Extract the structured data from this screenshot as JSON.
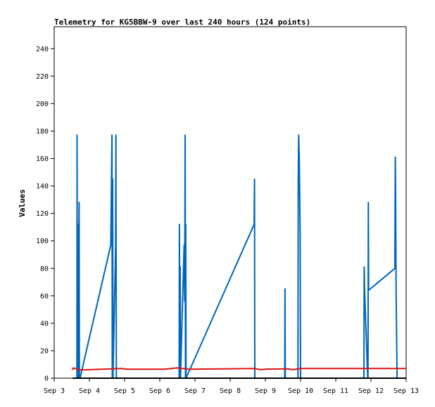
{
  "chart_data": {
    "type": "line",
    "title": "Telemetry for KG5BBW-9 over last 240 hours (124 points)",
    "xlabel": "",
    "ylabel": "Values",
    "xlim": [
      0,
      240
    ],
    "ylim": [
      0,
      256
    ],
    "grid": false,
    "x_ticks": [
      {
        "x": 0,
        "label": "Sep 3"
      },
      {
        "x": 24,
        "label": "Sep 4"
      },
      {
        "x": 48,
        "label": "Sep 5"
      },
      {
        "x": 72,
        "label": "Sep 6"
      },
      {
        "x": 96,
        "label": "Sep 7"
      },
      {
        "x": 120,
        "label": "Sep 8"
      },
      {
        "x": 144,
        "label": "Sep 9"
      },
      {
        "x": 168,
        "label": "Sep 10"
      },
      {
        "x": 192,
        "label": "Sep 11"
      },
      {
        "x": 216,
        "label": "Sep 12"
      },
      {
        "x": 240,
        "label": "Sep 13"
      }
    ],
    "y_ticks": [
      0,
      20,
      40,
      60,
      80,
      100,
      120,
      140,
      160,
      180,
      200,
      220,
      240
    ],
    "series": [
      {
        "color": "#0066bb",
        "points": [
          [
            15.5,
            0
          ],
          [
            15.6,
            177
          ],
          [
            15.8,
            0
          ],
          [
            16.2,
            112
          ],
          [
            16.4,
            0
          ],
          [
            16.7,
            56
          ],
          [
            17.0,
            128
          ],
          [
            17.2,
            0
          ],
          [
            17.6,
            0
          ],
          [
            38.6,
            97
          ],
          [
            39.4,
            177
          ],
          [
            39.6,
            0
          ],
          [
            39.9,
            145
          ],
          [
            40.1,
            0
          ],
          [
            41.9,
            97
          ],
          [
            42.1,
            177
          ],
          [
            42.4,
            0
          ],
          [
            85.2,
            0
          ],
          [
            85.4,
            112
          ],
          [
            85.7,
            0
          ],
          [
            85.9,
            81
          ],
          [
            86.1,
            0
          ],
          [
            88.4,
            90
          ],
          [
            88.6,
            97
          ],
          [
            89.0,
            56
          ],
          [
            89.3,
            177
          ],
          [
            89.5,
            0
          ],
          [
            89.7,
            112
          ],
          [
            89.9,
            16
          ],
          [
            89.9,
            0
          ],
          [
            136.3,
            112
          ],
          [
            136.6,
            145
          ],
          [
            136.8,
            0
          ],
          [
            157.2,
            0
          ],
          [
            157.4,
            65
          ],
          [
            157.6,
            0
          ],
          [
            166.2,
            0
          ],
          [
            166.4,
            145
          ],
          [
            166.7,
            177
          ],
          [
            167.1,
            162
          ],
          [
            167.4,
            133
          ],
          [
            167.7,
            104
          ],
          [
            168.0,
            0
          ],
          [
            211.2,
            0
          ],
          [
            211.4,
            81
          ],
          [
            211.7,
            64
          ],
          [
            213.8,
            0
          ],
          [
            214.0,
            0
          ],
          [
            214.2,
            128
          ],
          [
            214.4,
            64
          ],
          [
            232.3,
            80
          ],
          [
            232.6,
            161
          ],
          [
            232.8,
            140
          ],
          [
            233.0,
            100
          ],
          [
            233.2,
            60
          ],
          [
            233.6,
            20
          ],
          [
            233.8,
            0
          ]
        ]
      },
      {
        "color": "#dd1111",
        "points": [
          [
            12.5,
            6
          ],
          [
            13.0,
            7.5
          ],
          [
            17.5,
            6
          ],
          [
            33.0,
            6.5
          ],
          [
            45.5,
            7
          ],
          [
            50.0,
            6.5
          ],
          [
            75.0,
            6.5
          ],
          [
            84.0,
            7.5
          ],
          [
            92.0,
            6.5
          ],
          [
            137.0,
            7
          ],
          [
            140.5,
            6.2
          ],
          [
            145.0,
            6.6
          ],
          [
            159.0,
            6.8
          ],
          [
            163.0,
            6.2
          ],
          [
            168.0,
            7
          ],
          [
            240.0,
            7
          ]
        ]
      },
      {
        "color": "#000000",
        "points": [
          [
            12.5,
            0
          ],
          [
            240.0,
            0
          ]
        ]
      }
    ]
  }
}
